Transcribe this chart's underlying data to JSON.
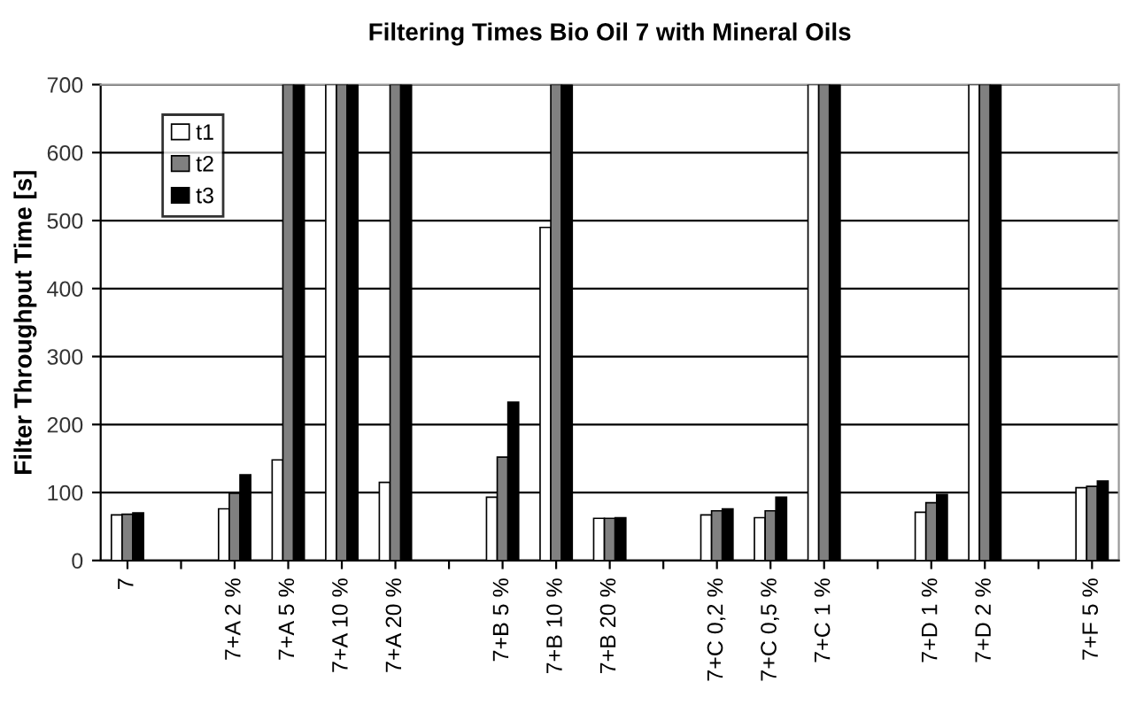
{
  "chart_data": {
    "type": "bar",
    "title": "Filtering Times Bio Oil 7 with Mineral Oils",
    "ylabel": "Filter Throughput Time [s]",
    "categories": [
      "7",
      null,
      "7+A 2 %",
      "7+A 5 %",
      "7+A 10 %",
      "7+A 20 %",
      null,
      "7+B 5 %",
      "7+B 10 %",
      "7+B 20 %",
      null,
      "7+C 0,2 %",
      "7+C 0,5 %",
      "7+C 1 %",
      null,
      "7+D 1 %",
      "7+D 2 %",
      null,
      "7+F 5 %"
    ],
    "series": [
      {
        "name": "t1",
        "color": "#ffffff",
        "values": [
          67,
          null,
          76,
          148,
          700,
          115,
          null,
          93,
          490,
          62,
          null,
          67,
          63,
          700,
          null,
          71,
          700,
          null,
          107
        ]
      },
      {
        "name": "t2",
        "color": "#808080",
        "values": [
          68,
          null,
          99,
          700,
          700,
          700,
          null,
          152,
          700,
          62,
          null,
          73,
          73,
          700,
          null,
          85,
          700,
          null,
          109
        ]
      },
      {
        "name": "t3",
        "color": "#000000",
        "values": [
          70,
          null,
          126,
          700,
          700,
          700,
          null,
          233,
          700,
          63,
          null,
          76,
          93,
          700,
          null,
          97,
          700,
          null,
          117
        ]
      }
    ],
    "ylim": [
      0,
      700
    ],
    "yticks": [
      0,
      100,
      200,
      300,
      400,
      500,
      600,
      700
    ],
    "grid": "y",
    "legend": "top left"
  }
}
